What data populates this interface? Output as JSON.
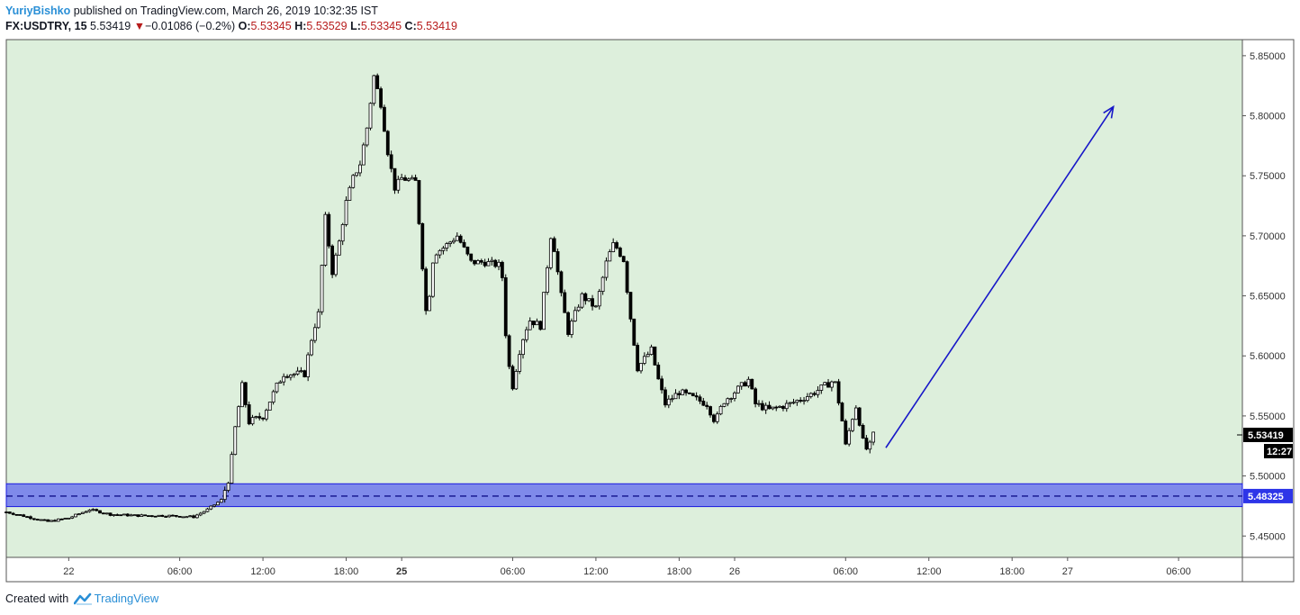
{
  "header": {
    "author": "YuriyBishko",
    "published": "published on TradingView.com, March 26, 2019 10:32:35 IST",
    "symbol": "FX:USDTRY, 15",
    "last": "5.53419",
    "change_arrow": "▼",
    "change": "−0.01086 (−0.2%)",
    "open_label": "O:",
    "open": "5.53345",
    "high_label": "H:",
    "high": "5.53529",
    "low_label": "L:",
    "low": "5.53345",
    "close_label": "C:",
    "close": "5.53419"
  },
  "footer": {
    "created_with": "Created with",
    "brand": "TradingView"
  },
  "colors": {
    "background": "#ddefdc",
    "zone_fill": "#6f78ec",
    "zone_line": "#1a1ae0",
    "arrow": "#1717c8",
    "candle": "#000000",
    "last_price_badge": "#000000",
    "zone_price_badge": "#2d35e8",
    "header_down": "#b71c1c",
    "brand": "#2a8fd6"
  },
  "chart_data": {
    "type": "candlestick",
    "y_ticks": [
      "5.85000",
      "5.80000",
      "5.75000",
      "5.70000",
      "5.65000",
      "5.60000",
      "5.55000",
      "5.50000",
      "5.45000"
    ],
    "y_tick_values": [
      5.85,
      5.8,
      5.75,
      5.7,
      5.65,
      5.6,
      5.55,
      5.5,
      5.45
    ],
    "ylim": [
      5.4322,
      5.8634
    ],
    "x_ticks": [
      {
        "label": "22",
        "bold": false,
        "h": 3
      },
      {
        "label": "06:00",
        "bold": false,
        "h": 11
      },
      {
        "label": "12:00",
        "bold": false,
        "h": 17
      },
      {
        "label": "18:00",
        "bold": false,
        "h": 23
      },
      {
        "label": "25",
        "bold": true,
        "h": 27
      },
      {
        "label": "06:00",
        "bold": false,
        "h": 35
      },
      {
        "label": "12:00",
        "bold": false,
        "h": 41
      },
      {
        "label": "18:00",
        "bold": false,
        "h": 47
      },
      {
        "label": "26",
        "bold": false,
        "h": 51
      },
      {
        "label": "06:00",
        "bold": false,
        "h": 59
      },
      {
        "label": "12:00",
        "bold": false,
        "h": 65
      },
      {
        "label": "18:00",
        "bold": false,
        "h": 71
      },
      {
        "label": "27",
        "bold": false,
        "h": 75
      },
      {
        "label": "06:00",
        "bold": false,
        "h": 83
      }
    ],
    "x_range_hours": [
      -1.5,
      87.6
    ],
    "price_path_hours": [
      [
        -1.5,
        5.47
      ],
      [
        1.5,
        5.462
      ],
      [
        3.0,
        5.465
      ],
      [
        4.5,
        5.472
      ],
      [
        6.0,
        5.468
      ],
      [
        8.0,
        5.467
      ],
      [
        10.0,
        5.467
      ],
      [
        12.0,
        5.466
      ],
      [
        13.0,
        5.472
      ],
      [
        14.0,
        5.48
      ],
      [
        14.6,
        5.5
      ],
      [
        15.0,
        5.54
      ],
      [
        15.5,
        5.575
      ],
      [
        16.0,
        5.545
      ],
      [
        17.0,
        5.55
      ],
      [
        18.0,
        5.575
      ],
      [
        18.5,
        5.585
      ],
      [
        20.0,
        5.585
      ],
      [
        20.6,
        5.62
      ],
      [
        21.0,
        5.635
      ],
      [
        21.5,
        5.715
      ],
      [
        22.0,
        5.67
      ],
      [
        22.5,
        5.695
      ],
      [
        23.0,
        5.728
      ],
      [
        23.5,
        5.748
      ],
      [
        24.0,
        5.76
      ],
      [
        24.5,
        5.79
      ],
      [
        25.0,
        5.833
      ],
      [
        25.5,
        5.81
      ],
      [
        26.0,
        5.77
      ],
      [
        26.5,
        5.74
      ],
      [
        27.0,
        5.748
      ],
      [
        28.0,
        5.745
      ],
      [
        28.3,
        5.705
      ],
      [
        28.8,
        5.63
      ],
      [
        29.3,
        5.685
      ],
      [
        30.0,
        5.69
      ],
      [
        31.0,
        5.7
      ],
      [
        32.0,
        5.678
      ],
      [
        33.0,
        5.678
      ],
      [
        34.2,
        5.675
      ],
      [
        34.6,
        5.6
      ],
      [
        35.0,
        5.575
      ],
      [
        35.6,
        5.61
      ],
      [
        36.2,
        5.63
      ],
      [
        37.0,
        5.625
      ],
      [
        37.8,
        5.705
      ],
      [
        38.5,
        5.65
      ],
      [
        39.0,
        5.62
      ],
      [
        40.0,
        5.65
      ],
      [
        41.0,
        5.64
      ],
      [
        41.8,
        5.68
      ],
      [
        42.3,
        5.694
      ],
      [
        43.0,
        5.68
      ],
      [
        43.4,
        5.64
      ],
      [
        44.0,
        5.59
      ],
      [
        45.0,
        5.605
      ],
      [
        45.5,
        5.58
      ],
      [
        46.0,
        5.56
      ],
      [
        47.0,
        5.57
      ],
      [
        48.0,
        5.565
      ],
      [
        49.0,
        5.56
      ],
      [
        49.6,
        5.545
      ],
      [
        50.2,
        5.562
      ],
      [
        51.0,
        5.57
      ],
      [
        52.0,
        5.58
      ],
      [
        52.5,
        5.56
      ],
      [
        53.5,
        5.555
      ],
      [
        55.0,
        5.56
      ],
      [
        56.5,
        5.568
      ],
      [
        57.5,
        5.575
      ],
      [
        58.2,
        5.58
      ],
      [
        58.7,
        5.55
      ],
      [
        59.0,
        5.525
      ],
      [
        59.4,
        5.545
      ],
      [
        59.8,
        5.56
      ],
      [
        60.2,
        5.53
      ],
      [
        60.6,
        5.52
      ],
      [
        61.0,
        5.534
      ]
    ],
    "annotations": {
      "zone": {
        "from": 5.4745,
        "to": 5.4935,
        "mid": 5.48325,
        "label": "5.48325"
      },
      "last_price": {
        "value": 5.53419,
        "label": "5.53419",
        "countdown": "12:27"
      },
      "arrow": {
        "from": [
          61.9,
          5.5235
        ],
        "to": [
          78.3,
          5.8075
        ]
      }
    }
  }
}
